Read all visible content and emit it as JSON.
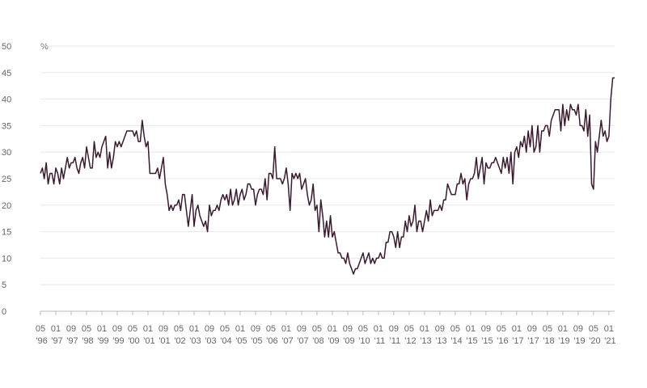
{
  "chart_data": {
    "type": "line",
    "y_unit": "%",
    "color": "#3b1a30",
    "grid": true,
    "ylim": [
      0,
      50
    ],
    "yticks": [
      0,
      5,
      10,
      15,
      20,
      25,
      30,
      35,
      40,
      45,
      50
    ],
    "categories": [
      "05 '96",
      null,
      null,
      null,
      null,
      null,
      null,
      null,
      "01 '97",
      null,
      null,
      null,
      null,
      null,
      null,
      null,
      "09 '97",
      null,
      null,
      null,
      null,
      null,
      null,
      null,
      "05 '98",
      null,
      null,
      null,
      null,
      null,
      null,
      null,
      "01 '99",
      null,
      null,
      null,
      null,
      null,
      null,
      null,
      "09 '99",
      null,
      null,
      null,
      null,
      null,
      null,
      null,
      "05 '00",
      null,
      null,
      null,
      null,
      null,
      null,
      null,
      "01 '01",
      null,
      null,
      null,
      null,
      null,
      null,
      null,
      "09 '01",
      null,
      null,
      null,
      null,
      null,
      null,
      null,
      "05 '02",
      null,
      null,
      null,
      null,
      null,
      null,
      null,
      "01 '03",
      null,
      null,
      null,
      null,
      null,
      null,
      null,
      "09 '03",
      null,
      null,
      null,
      null,
      null,
      null,
      null,
      "05 '04",
      null,
      null,
      null,
      null,
      null,
      null,
      null,
      "01 '05",
      null,
      null,
      null,
      null,
      null,
      null,
      null,
      "09 '05",
      null,
      null,
      null,
      null,
      null,
      null,
      null,
      "05 '06",
      null,
      null,
      null,
      null,
      null,
      null,
      null,
      "01 '07",
      null,
      null,
      null,
      null,
      null,
      null,
      null,
      "09 '07",
      null,
      null,
      null,
      null,
      null,
      null,
      null,
      "05 '08",
      null,
      null,
      null,
      null,
      null,
      null,
      null,
      "01 '09",
      null,
      null,
      null,
      null,
      null,
      null,
      null,
      "09 '09",
      null,
      null,
      null,
      null,
      null,
      null,
      null,
      "05 '10",
      null,
      null,
      null,
      null,
      null,
      null,
      null,
      "01 '11",
      null,
      null,
      null,
      null,
      null,
      null,
      null,
      "09 '11",
      null,
      null,
      null,
      null,
      null,
      null,
      null,
      "05 '12",
      null,
      null,
      null,
      null,
      null,
      null,
      null,
      "01 '13",
      null,
      null,
      null,
      null,
      null,
      null,
      null,
      "09 '13",
      null,
      null,
      null,
      null,
      null,
      null,
      null,
      "05 '14",
      null,
      null,
      null,
      null,
      null,
      null,
      null,
      "01 '15",
      null,
      null,
      null,
      null,
      null,
      null,
      null,
      "09 '15",
      null,
      null,
      null,
      null,
      null,
      null,
      null,
      "05 '16",
      null,
      null,
      null,
      null,
      null,
      null,
      null,
      "01 '17",
      null,
      null,
      null,
      null,
      null,
      null,
      null,
      "09 '17",
      null,
      null,
      null,
      null,
      null,
      null,
      null,
      "05 '18",
      null,
      null,
      null,
      null,
      null,
      null,
      null,
      "01 '19",
      null,
      null,
      null,
      null,
      null,
      null,
      null,
      "09 '19",
      null,
      null,
      null,
      null,
      null,
      null,
      null,
      "05 '20",
      null,
      null,
      null,
      null,
      null,
      null,
      null,
      "01 '21",
      null,
      null,
      null
    ],
    "values": [
      26,
      27,
      25,
      28,
      24,
      26,
      26,
      24,
      27,
      26,
      24,
      27,
      25,
      27,
      29,
      27,
      28,
      28,
      29,
      27,
      26,
      28,
      29,
      27,
      31,
      29,
      27,
      27,
      32,
      29,
      30,
      29,
      31,
      32,
      33,
      27,
      30,
      27,
      29,
      32,
      31,
      32,
      31,
      32,
      33,
      34,
      34,
      34,
      34,
      33,
      34,
      32,
      32,
      36,
      33,
      31,
      32,
      26,
      26,
      26,
      26,
      27,
      25,
      27,
      29,
      24,
      22,
      19,
      20,
      19,
      20,
      20,
      21,
      19,
      22,
      22,
      19,
      16,
      19,
      22,
      16,
      19,
      20,
      18,
      17,
      16,
      17,
      15,
      20,
      18,
      19,
      19,
      20,
      19,
      21,
      22,
      21,
      22,
      20,
      23,
      20,
      21,
      23,
      20,
      22,
      23,
      21,
      22,
      24,
      24,
      23,
      23,
      20,
      22,
      23,
      23,
      22,
      25,
      21,
      26,
      26,
      25,
      31,
      25,
      25,
      25,
      24,
      25,
      27,
      24,
      19,
      26,
      25,
      26,
      25,
      26,
      23,
      24,
      25,
      22,
      20,
      21,
      24,
      19,
      20,
      15,
      21,
      18,
      14,
      17,
      14,
      18,
      14,
      15,
      13,
      11,
      11,
      10,
      10,
      9,
      11,
      9,
      8,
      7,
      8,
      8,
      9,
      10,
      11,
      9,
      10,
      11,
      9,
      10,
      9,
      10,
      10,
      11,
      10,
      10,
      13,
      13,
      15,
      15,
      14,
      12,
      15,
      12,
      14,
      14,
      17,
      15,
      18,
      16,
      17,
      20,
      15,
      17,
      17,
      15,
      17,
      19,
      17,
      21,
      18,
      19,
      19,
      19,
      20,
      19,
      21,
      21,
      24,
      23,
      22,
      22,
      22,
      24,
      24,
      26,
      24,
      25,
      21,
      24,
      25,
      25,
      26,
      29,
      25,
      27,
      29,
      24,
      28,
      27,
      27,
      28,
      28,
      29,
      28,
      27,
      26,
      29,
      27,
      29,
      26,
      30,
      24,
      30,
      31,
      29,
      32,
      31,
      33,
      30,
      34,
      31,
      35,
      30,
      31,
      35,
      30,
      34,
      34,
      35,
      35,
      33,
      36,
      37,
      38,
      38,
      38,
      34,
      39,
      35,
      38,
      36,
      39,
      38,
      38,
      37,
      39,
      35,
      35,
      34,
      38,
      33,
      37,
      24,
      23,
      32,
      30,
      33,
      36,
      33,
      34,
      32,
      33,
      40,
      44,
      44
    ]
  }
}
